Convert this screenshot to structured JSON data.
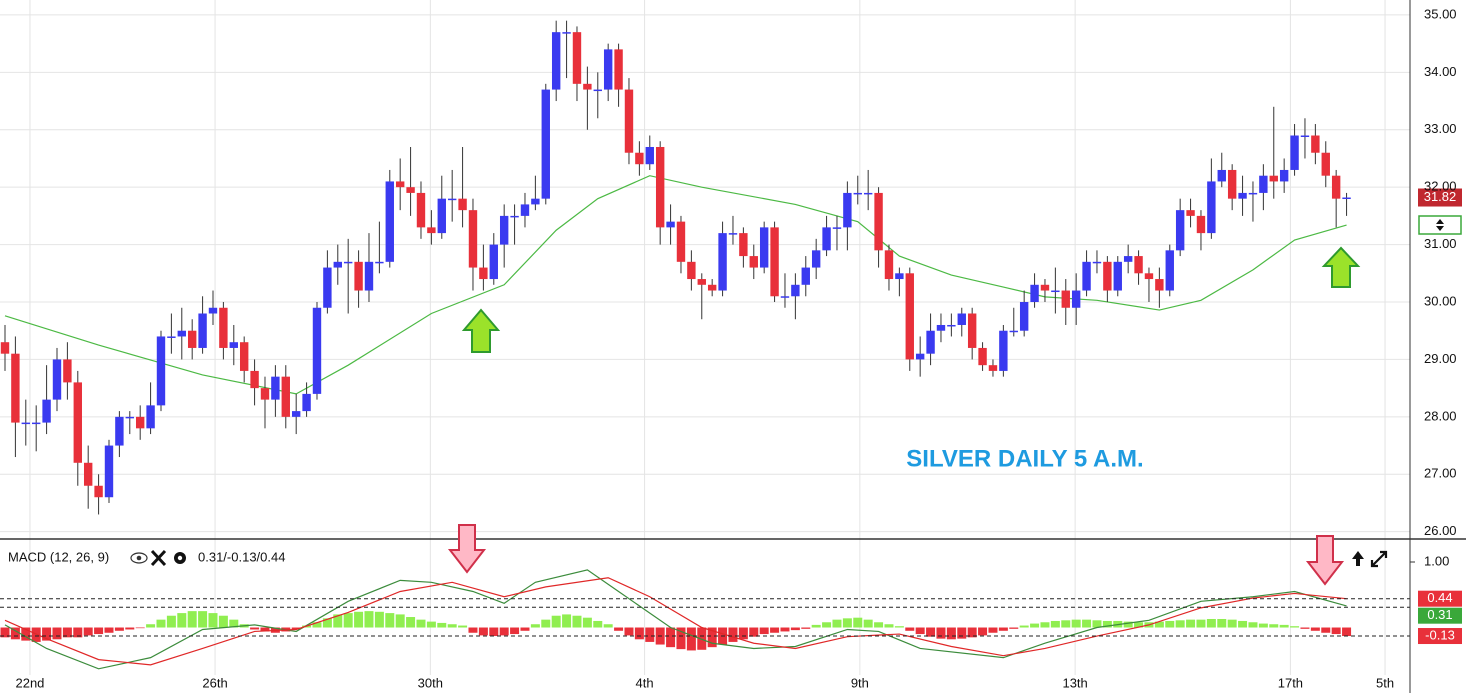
{
  "chart_data": [
    {
      "type": "candlestick",
      "annotation": "SILVER DAILY 5 A.M.",
      "up_color": "#3a3af0",
      "down_color": "#e8303a",
      "xlim": [
        -0.48,
        135.1
      ],
      "xticks": [
        {
          "value": 2.4,
          "label": "22nd"
        },
        {
          "value": 20.2,
          "label": "26th"
        },
        {
          "value": 40.9,
          "label": "30th"
        },
        {
          "value": 61.5,
          "label": "4th"
        },
        {
          "value": 82.2,
          "label": "9th"
        },
        {
          "value": 102.9,
          "label": "13th"
        },
        {
          "value": 123.6,
          "label": "17th"
        },
        {
          "value": 132.7,
          "label": "5th"
        }
      ],
      "ylim": [
        25.89,
        35.26
      ],
      "yticks": [
        {
          "value": 26,
          "label": "26.00"
        },
        {
          "value": 27,
          "label": "27.00"
        },
        {
          "value": 28,
          "label": "28.00"
        },
        {
          "value": 29,
          "label": "29.00"
        },
        {
          "value": 30,
          "label": "30.00"
        },
        {
          "value": 31,
          "label": "31.00"
        },
        {
          "value": 32,
          "label": "32.00"
        },
        {
          "value": 33,
          "label": "33.00"
        },
        {
          "value": 34,
          "label": "34.00"
        },
        {
          "value": 35,
          "label": "35.00"
        }
      ],
      "grid": true,
      "price_tag": {
        "value": 31.82,
        "color": "#c0282f"
      },
      "open": [
        29.3,
        29.1,
        27.9,
        27.9,
        27.9,
        28.3,
        29.0,
        28.6,
        27.2,
        26.8,
        26.6,
        27.5,
        28.0,
        28.0,
        27.8,
        28.2,
        29.4,
        29.4,
        29.5,
        29.2,
        29.8,
        29.9,
        29.2,
        29.3,
        28.8,
        28.5,
        28.3,
        28.7,
        28.0,
        28.1,
        28.4,
        29.9,
        30.6,
        30.7,
        30.7,
        30.2,
        30.7,
        30.7,
        32.1,
        32.0,
        31.9,
        31.3,
        31.2,
        31.8,
        31.8,
        31.6,
        30.6,
        30.4,
        31.0,
        31.5,
        31.5,
        31.7,
        31.8,
        33.7,
        34.7,
        34.7,
        33.8,
        33.7,
        33.7,
        34.4,
        33.7,
        32.6,
        32.4,
        32.7,
        31.3,
        31.4,
        30.7,
        30.4,
        30.3,
        30.2,
        31.2,
        31.2,
        30.8,
        30.6,
        31.3,
        30.1,
        30.1,
        30.3,
        30.6,
        30.9,
        31.3,
        31.3,
        31.9,
        31.9,
        31.9,
        30.9,
        30.4,
        30.5,
        29.0,
        29.1,
        29.5,
        29.6,
        29.6,
        29.8,
        29.2,
        28.9,
        28.8,
        29.5,
        29.5,
        30.0,
        30.3,
        30.2,
        30.2,
        29.9,
        30.2,
        30.7,
        30.7,
        30.2,
        30.7,
        30.8,
        30.5,
        30.4,
        30.2,
        30.9,
        31.6,
        31.5,
        31.2,
        32.1,
        32.3,
        31.8,
        31.9,
        31.9,
        32.2,
        32.1,
        32.3,
        32.9,
        32.9,
        32.6,
        32.2,
        31.8
      ],
      "high": [
        29.6,
        29.4,
        28.3,
        28.2,
        28.9,
        29.2,
        29.3,
        28.8,
        27.5,
        27.0,
        27.6,
        28.1,
        28.1,
        28.2,
        28.6,
        29.5,
        29.8,
        29.9,
        29.7,
        30.1,
        30.2,
        30.0,
        29.6,
        29.4,
        29.0,
        28.7,
        28.9,
        28.9,
        28.4,
        28.6,
        30.0,
        30.9,
        31.0,
        31.1,
        30.9,
        31.2,
        31.4,
        32.3,
        32.5,
        32.7,
        32.1,
        31.6,
        32.2,
        32.3,
        32.7,
        31.8,
        31.0,
        31.2,
        31.7,
        31.7,
        31.9,
        32.2,
        33.8,
        34.9,
        34.9,
        34.8,
        34.1,
        34.0,
        34.5,
        34.5,
        33.9,
        32.8,
        32.9,
        32.8,
        31.7,
        31.5,
        30.9,
        30.5,
        30.4,
        31.4,
        31.5,
        31.3,
        31.0,
        31.4,
        31.4,
        30.5,
        30.5,
        30.8,
        31.1,
        31.5,
        31.5,
        32.1,
        32.2,
        32.3,
        32.0,
        31.0,
        30.6,
        30.6,
        29.4,
        29.8,
        29.8,
        29.8,
        29.9,
        29.9,
        29.3,
        29.0,
        29.6,
        29.9,
        30.2,
        30.5,
        30.4,
        30.6,
        30.4,
        30.5,
        30.9,
        30.9,
        30.8,
        30.8,
        31.0,
        30.9,
        30.6,
        30.6,
        31.0,
        31.8,
        31.8,
        31.6,
        32.5,
        32.6,
        32.4,
        32.2,
        32.1,
        32.4,
        33.4,
        32.5,
        33.1,
        33.2,
        33.1,
        32.8,
        32.3,
        31.9
      ],
      "low": [
        28.8,
        27.3,
        27.5,
        27.4,
        27.7,
        28.1,
        28.3,
        26.8,
        26.4,
        26.3,
        26.5,
        27.3,
        27.7,
        27.6,
        27.7,
        28.1,
        29.1,
        29.0,
        29.0,
        29.1,
        29.6,
        29.0,
        28.9,
        28.6,
        28.2,
        27.8,
        28.0,
        27.8,
        27.7,
        28.0,
        28.3,
        29.8,
        30.3,
        29.8,
        29.9,
        30.0,
        30.5,
        30.6,
        31.6,
        31.5,
        31.1,
        31.0,
        31.1,
        31.4,
        31.3,
        30.2,
        30.2,
        30.3,
        30.6,
        31.0,
        31.3,
        31.6,
        31.7,
        33.5,
        33.9,
        33.5,
        33.0,
        33.2,
        33.5,
        33.4,
        32.4,
        32.2,
        32.3,
        31.0,
        31.0,
        30.5,
        30.2,
        29.7,
        30.1,
        30.1,
        31.0,
        30.6,
        30.4,
        30.5,
        30.0,
        29.9,
        29.7,
        30.1,
        30.4,
        30.8,
        30.9,
        30.9,
        31.7,
        31.6,
        30.6,
        30.2,
        30.1,
        28.8,
        28.7,
        28.9,
        29.3,
        29.4,
        29.4,
        29.0,
        28.8,
        28.7,
        28.7,
        29.4,
        29.4,
        29.9,
        30.0,
        29.8,
        29.6,
        29.6,
        30.1,
        30.5,
        30.0,
        30.1,
        30.5,
        30.3,
        30.0,
        29.9,
        30.1,
        30.8,
        31.3,
        30.9,
        31.1,
        32.0,
        31.6,
        31.5,
        31.4,
        31.6,
        31.8,
        31.9,
        32.2,
        32.5,
        32.4,
        32.0,
        31.3,
        31.5
      ],
      "close": [
        29.1,
        27.9,
        27.9,
        27.9,
        28.3,
        29.0,
        28.6,
        27.2,
        26.8,
        26.6,
        27.5,
        28.0,
        28.0,
        27.8,
        28.2,
        29.4,
        29.4,
        29.5,
        29.2,
        29.8,
        29.9,
        29.2,
        29.3,
        28.8,
        28.5,
        28.3,
        28.7,
        28.0,
        28.1,
        28.4,
        29.9,
        30.6,
        30.7,
        30.7,
        30.2,
        30.7,
        30.7,
        32.1,
        32.0,
        31.9,
        31.3,
        31.2,
        31.8,
        31.8,
        31.6,
        30.6,
        30.4,
        31.0,
        31.5,
        31.5,
        31.7,
        31.8,
        33.7,
        34.7,
        34.7,
        33.8,
        33.7,
        33.7,
        34.4,
        33.7,
        32.6,
        32.4,
        32.7,
        31.3,
        31.4,
        30.7,
        30.4,
        30.3,
        30.2,
        31.2,
        31.2,
        30.8,
        30.6,
        31.3,
        30.1,
        30.1,
        30.3,
        30.6,
        30.9,
        31.3,
        31.3,
        31.9,
        31.9,
        31.9,
        30.9,
        30.4,
        30.5,
        29.0,
        29.1,
        29.5,
        29.6,
        29.6,
        29.8,
        29.2,
        28.9,
        28.8,
        29.5,
        29.5,
        30.0,
        30.3,
        30.2,
        30.2,
        29.9,
        30.2,
        30.7,
        30.7,
        30.2,
        30.7,
        30.8,
        30.5,
        30.4,
        30.2,
        30.9,
        31.6,
        31.5,
        31.2,
        32.1,
        32.3,
        31.8,
        31.9,
        31.9,
        32.2,
        32.1,
        32.3,
        32.9,
        32.9,
        32.6,
        32.2,
        31.8,
        31.82
      ],
      "ma": {
        "color": "#4cb944",
        "x": [
          0,
          9,
          19,
          28,
          33,
          41,
          48,
          53,
          57,
          62,
          67,
          76,
          82,
          86,
          91,
          96,
          100,
          105,
          111,
          115,
          120,
          124,
          129
        ],
        "values": [
          29.76,
          29.25,
          28.73,
          28.4,
          28.9,
          29.8,
          30.3,
          31.25,
          31.8,
          32.2,
          32.0,
          31.7,
          31.4,
          30.8,
          30.47,
          30.26,
          30.09,
          30.03,
          29.86,
          30.03,
          30.56,
          31.08,
          31.34
        ]
      }
    },
    {
      "type": "line",
      "title": "MACD (12, 26, 9)",
      "readout": "0.31/-0.13/0.44",
      "ylim": [
        -0.725,
        1.336
      ],
      "yticks": [
        {
          "value": 1,
          "label": "1.00"
        }
      ],
      "value_tags": [
        {
          "value": 0.44,
          "color": "#e8303a"
        },
        {
          "value": 0.31,
          "color": "#3aa83a"
        },
        {
          "value": -0.13,
          "color": "#e8303a"
        }
      ],
      "series": [
        {
          "color": "#3c8c3c",
          "x": [
            0,
            4,
            9,
            14,
            19,
            24,
            28,
            33,
            38,
            41,
            45,
            48,
            51,
            56,
            59,
            64,
            68,
            72,
            76,
            81,
            84,
            88,
            96,
            100,
            105,
            110,
            115,
            120,
            124,
            129
          ],
          "values": [
            0.04,
            -0.32,
            -0.63,
            -0.46,
            -0.03,
            0.04,
            -0.06,
            0.4,
            0.72,
            0.69,
            0.55,
            0.37,
            0.69,
            0.88,
            0.55,
            0,
            -0.24,
            -0.32,
            -0.29,
            -0.03,
            -0.06,
            -0.32,
            -0.46,
            -0.24,
            0,
            0.11,
            0.4,
            0.47,
            0.55,
            0.33
          ]
        },
        {
          "color": "#e02828",
          "x": [
            0,
            4,
            9,
            14,
            19,
            24,
            28,
            33,
            38,
            43,
            48,
            52,
            58,
            62,
            67,
            72,
            76,
            81,
            86,
            91,
            96,
            100,
            105,
            110,
            115,
            120,
            124,
            129
          ],
          "values": [
            0.11,
            -0.17,
            -0.49,
            -0.57,
            -0.32,
            -0.06,
            -0.03,
            0.23,
            0.55,
            0.69,
            0.47,
            0.62,
            0.76,
            0.47,
            0,
            -0.24,
            -0.32,
            -0.14,
            -0.1,
            -0.29,
            -0.43,
            -0.32,
            -0.13,
            0.04,
            0.3,
            0.45,
            0.52,
            0.44
          ]
        }
      ],
      "histogram": {
        "pos_color": "#90ee50",
        "neg_color": "#e8303a",
        "values": [
          -0.15,
          -0.18,
          -0.2,
          -0.22,
          -0.2,
          -0.18,
          -0.15,
          -0.15,
          -0.12,
          -0.1,
          -0.08,
          -0.05,
          -0.03,
          -0.01,
          0.05,
          0.12,
          0.18,
          0.22,
          0.25,
          0.25,
          0.22,
          0.18,
          0.12,
          0.05,
          -0.03,
          -0.06,
          -0.08,
          -0.06,
          -0.03,
          0.03,
          0.08,
          0.14,
          0.2,
          0.22,
          0.24,
          0.25,
          0.24,
          0.22,
          0.2,
          0.16,
          0.12,
          0.09,
          0.07,
          0.05,
          0.03,
          -0.08,
          -0.12,
          -0.13,
          -0.12,
          -0.1,
          -0.05,
          0.05,
          0.12,
          0.18,
          0.2,
          0.18,
          0.15,
          0.1,
          0.05,
          -0.05,
          -0.12,
          -0.18,
          -0.22,
          -0.26,
          -0.3,
          -0.33,
          -0.35,
          -0.34,
          -0.3,
          -0.26,
          -0.22,
          -0.18,
          -0.14,
          -0.1,
          -0.08,
          -0.06,
          -0.04,
          -0.02,
          0.04,
          0.08,
          0.12,
          0.14,
          0.15,
          0.12,
          0.08,
          0.05,
          0.02,
          -0.05,
          -0.1,
          -0.14,
          -0.17,
          -0.18,
          -0.17,
          -0.15,
          -0.12,
          -0.08,
          -0.05,
          -0.02,
          0.03,
          0.06,
          0.08,
          0.1,
          0.11,
          0.12,
          0.12,
          0.11,
          0.1,
          0.1,
          0.09,
          0.08,
          0.08,
          0.09,
          0.1,
          0.11,
          0.12,
          0.12,
          0.13,
          0.13,
          0.12,
          0.1,
          0.08,
          0.06,
          0.05,
          0.04,
          0.02,
          -0.02,
          -0.05,
          -0.08,
          -0.1,
          -0.13
        ]
      }
    }
  ]
}
